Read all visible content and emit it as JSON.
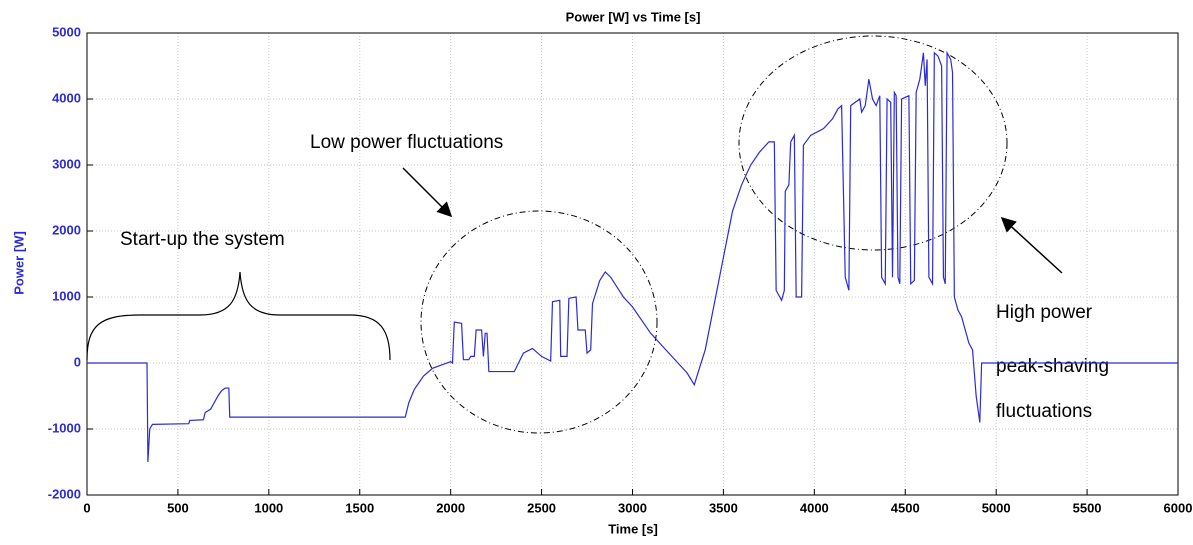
{
  "chart_data": {
    "type": "line",
    "title": "Power [W] vs Time [s]",
    "xlabel": "Time [s]",
    "ylabel": "Power [W]",
    "x": [
      0,
      330,
      335,
      345,
      360,
      560,
      565,
      640,
      650,
      680,
      700,
      720,
      740,
      760,
      780,
      785,
      1750,
      1770,
      1800,
      1850,
      1900,
      1950,
      2000,
      2010,
      2020,
      2060,
      2070,
      2100,
      2110,
      2130,
      2140,
      2170,
      2180,
      2190,
      2200,
      2210,
      2350,
      2400,
      2450,
      2500,
      2550,
      2560,
      2600,
      2605,
      2640,
      2650,
      2690,
      2700,
      2740,
      2750,
      2770,
      2780,
      2820,
      2850,
      2880,
      2950,
      3000,
      3100,
      3200,
      3250,
      3300,
      3340,
      3360,
      3400,
      3450,
      3500,
      3550,
      3600,
      3650,
      3700,
      3750,
      3780,
      3790,
      3820,
      3835,
      3840,
      3860,
      3870,
      3890,
      3900,
      3930,
      3940,
      3980,
      4050,
      4100,
      4130,
      4150,
      4170,
      4190,
      4200,
      4250,
      4260,
      4280,
      4300,
      4320,
      4340,
      4360,
      4370,
      4390,
      4400,
      4420,
      4430,
      4440,
      4450,
      4460,
      4470,
      4480,
      4520,
      4530,
      4550,
      4560,
      4580,
      4600,
      4610,
      4620,
      4630,
      4650,
      4660,
      4680,
      4700,
      4710,
      4720,
      4730,
      4750,
      4760,
      4770,
      4790,
      4810,
      4830,
      4850,
      4870,
      4890,
      4900,
      4910,
      4920,
      6000
    ],
    "series": [
      {
        "color": "#2b2bd6",
        "values": [
          0,
          0,
          -1500,
          -1000,
          -930,
          -920,
          -870,
          -860,
          -750,
          -700,
          -600,
          -500,
          -420,
          -380,
          -380,
          -820,
          -820,
          -600,
          -400,
          -200,
          -80,
          -30,
          20,
          0,
          620,
          600,
          50,
          50,
          100,
          100,
          500,
          500,
          100,
          450,
          450,
          -130,
          -130,
          150,
          220,
          100,
          30,
          930,
          950,
          100,
          100,
          980,
          1000,
          500,
          500,
          150,
          200,
          900,
          1250,
          1380,
          1300,
          1000,
          850,
          450,
          150,
          0,
          -150,
          -330,
          -150,
          200,
          900,
          1600,
          2300,
          2700,
          3000,
          3200,
          3350,
          3350,
          1100,
          950,
          1100,
          2600,
          2700,
          3350,
          3450,
          1000,
          1000,
          3300,
          3450,
          3550,
          3700,
          3850,
          3900,
          1300,
          1100,
          3900,
          4000,
          3800,
          3900,
          4300,
          4000,
          3900,
          4050,
          1300,
          1200,
          4000,
          3950,
          1300,
          4100,
          4050,
          1300,
          1200,
          4000,
          4050,
          1200,
          1250,
          4100,
          4300,
          4700,
          4200,
          4600,
          1300,
          1200,
          4700,
          4650,
          4500,
          1300,
          1200,
          4700,
          4600,
          4400,
          1000,
          800,
          700,
          500,
          300,
          200,
          -500,
          -700,
          -900,
          0,
          0
        ]
      }
    ],
    "xlim": [
      0,
      6000
    ],
    "ylim": [
      -2000,
      5000
    ],
    "xticks": [
      0,
      500,
      1000,
      1500,
      2000,
      2500,
      3000,
      3500,
      4000,
      4500,
      5000,
      5500,
      6000
    ],
    "yticks": [
      -2000,
      -1000,
      0,
      1000,
      2000,
      3000,
      4000,
      5000
    ],
    "grid": true,
    "annotations": [
      "Low power fluctuations",
      "Start-up the system",
      "High power",
      "peak-shaving",
      "fluctuations"
    ]
  }
}
